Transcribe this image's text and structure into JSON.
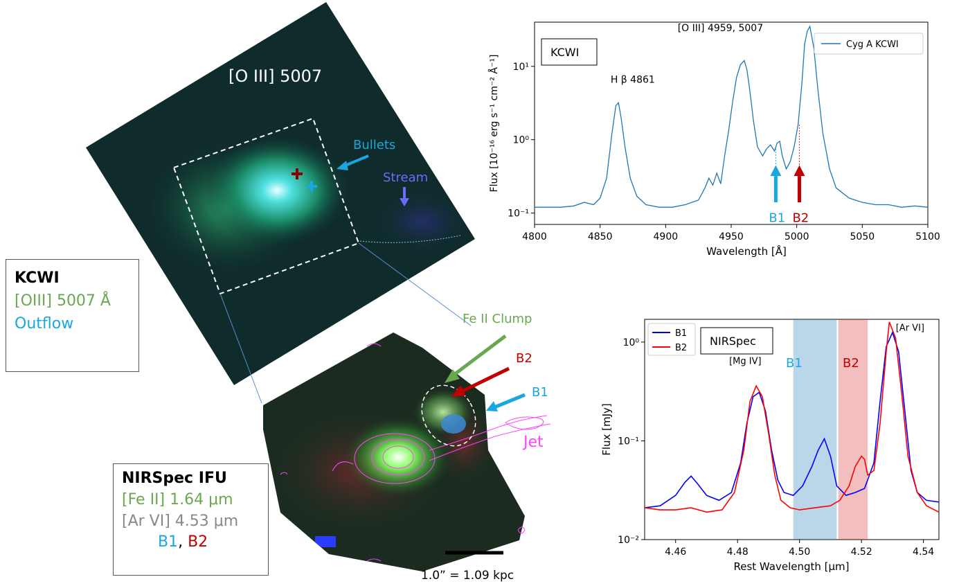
{
  "kcwi_image": {
    "title": "[O III] 5007",
    "bullets_label": "Bullets",
    "stream_label": "Stream"
  },
  "kcwi_box": {
    "line1": "KCWI",
    "line2": "[OIII] 5007 Å",
    "line3": "Outflow"
  },
  "nirspec_image": {
    "fe_clump_label": "Fe II Clump",
    "b2_label": "B2",
    "b1_label": "B1",
    "jet_label": "Jet",
    "scale_label": "1.0” = 1.09 kpc"
  },
  "nirspec_box": {
    "line1": "NIRSpec IFU",
    "line2": "[Fe II] 1.64 μm",
    "line3": "[Ar VI] 4.53 μm",
    "line4a": "B1",
    "line4b": ", ",
    "line4c": "B2"
  },
  "colors": {
    "green": "#6aa84f",
    "cyan": "#1aa7e0",
    "red": "#c00000",
    "gray": "#888888",
    "magenta": "#ff44ff",
    "stream": "#6b6bff"
  },
  "chart_data": [
    {
      "type": "line",
      "inset_label": "KCWI",
      "xlabel": "Wavelength [Å]",
      "ylabel": "Flux [10⁻¹⁶ erg s⁻¹ cm⁻² Å⁻¹]",
      "xlim": [
        4800,
        5100
      ],
      "ylim": [
        0.07,
        40
      ],
      "yscale": "log",
      "xticks": [
        4800,
        4850,
        4900,
        4950,
        5000,
        5050,
        5100
      ],
      "yticks": [
        {
          "v": 0.1,
          "label": "10⁻¹"
        },
        {
          "v": 1,
          "label": "10⁰"
        },
        {
          "v": 10,
          "label": "10¹"
        }
      ],
      "legend": "top-right",
      "series": [
        {
          "name": "Cyg A KCWI",
          "color": "#1f77b4",
          "x": [
            4800,
            4810,
            4820,
            4830,
            4838,
            4845,
            4850,
            4855,
            4859,
            4862,
            4864,
            4866,
            4869,
            4873,
            4878,
            4885,
            4895,
            4905,
            4915,
            4925,
            4930,
            4933,
            4936,
            4939,
            4942,
            4945,
            4948,
            4951,
            4954,
            4957,
            4960,
            4962,
            4964,
            4967,
            4970,
            4974,
            4977,
            4980,
            4983,
            4985,
            4987,
            4989,
            4992,
            4995,
            4998,
            5001,
            5004,
            5006,
            5008,
            5010,
            5013,
            5016,
            5020,
            5025,
            5030,
            5040,
            5050,
            5060,
            5070,
            5080,
            5090,
            5100
          ],
          "y": [
            0.12,
            0.12,
            0.12,
            0.125,
            0.14,
            0.13,
            0.16,
            0.3,
            1.2,
            2.9,
            3.2,
            2.0,
            0.8,
            0.3,
            0.17,
            0.13,
            0.12,
            0.12,
            0.13,
            0.15,
            0.22,
            0.3,
            0.24,
            0.35,
            0.25,
            0.6,
            1.3,
            3.2,
            7,
            10.5,
            12,
            9,
            5,
            1.8,
            0.8,
            0.6,
            0.75,
            0.85,
            0.7,
            0.9,
            0.95,
            0.6,
            0.4,
            0.5,
            0.8,
            1.6,
            6,
            20,
            30,
            35,
            18,
            5,
            1.2,
            0.4,
            0.22,
            0.16,
            0.14,
            0.13,
            0.13,
            0.12,
            0.125,
            0.12
          ]
        }
      ],
      "annotations": [
        {
          "text": "H β 4861",
          "x": 4858,
          "y": 6
        },
        {
          "text": "[O III] 4959, 5007",
          "x": 4962,
          "y": 30
        },
        {
          "text": "B1",
          "x": 4984,
          "y": 0.09
        },
        {
          "text": "B2",
          "x": 5002,
          "y": 0.09
        }
      ]
    },
    {
      "type": "line",
      "inset_label": "NIRSpec",
      "xlabel": "Rest Wavelength [μm]",
      "ylabel": "Flux [mJy]",
      "xlim": [
        4.45,
        4.545
      ],
      "ylim": [
        0.01,
        1.7
      ],
      "yscale": "log",
      "xticks": [
        4.46,
        4.48,
        4.5,
        4.52,
        4.54
      ],
      "yticks": [
        {
          "v": 0.01,
          "label": "10⁻²"
        },
        {
          "v": 0.1,
          "label": "10⁻¹"
        },
        {
          "v": 1,
          "label": "10⁰"
        }
      ],
      "legend": "top-left",
      "bands": [
        {
          "name": "B1",
          "x0": 4.498,
          "x1": 4.512,
          "color": "#1f77b4"
        },
        {
          "name": "B2",
          "x0": 4.5125,
          "x1": 4.522,
          "color": "#d62728"
        }
      ],
      "series": [
        {
          "name": "B1",
          "color": "#0000ff",
          "x": [
            4.45,
            4.455,
            4.46,
            4.463,
            4.465,
            4.467,
            4.47,
            4.474,
            4.478,
            4.481,
            4.483,
            4.485,
            4.487,
            4.489,
            4.491,
            4.493,
            4.495,
            4.498,
            4.501,
            4.504,
            4.506,
            4.508,
            4.51,
            4.512,
            4.515,
            4.518,
            4.521,
            4.524,
            4.526,
            4.528,
            4.53,
            4.532,
            4.534,
            4.536,
            4.538,
            4.541,
            4.545
          ],
          "y": [
            0.021,
            0.022,
            0.028,
            0.038,
            0.044,
            0.037,
            0.028,
            0.025,
            0.03,
            0.06,
            0.15,
            0.28,
            0.31,
            0.2,
            0.08,
            0.04,
            0.03,
            0.028,
            0.035,
            0.055,
            0.08,
            0.105,
            0.07,
            0.035,
            0.028,
            0.03,
            0.033,
            0.06,
            0.25,
            0.9,
            1.25,
            0.8,
            0.2,
            0.05,
            0.03,
            0.025,
            0.024
          ]
        },
        {
          "name": "B2",
          "color": "#ff0000",
          "x": [
            4.45,
            4.455,
            4.46,
            4.465,
            4.47,
            4.475,
            4.479,
            4.482,
            4.484,
            4.486,
            4.488,
            4.49,
            4.492,
            4.494,
            4.497,
            4.5,
            4.505,
            4.51,
            4.513,
            4.516,
            4.518,
            4.52,
            4.521,
            4.522,
            4.524,
            4.526,
            4.528,
            4.529,
            4.531,
            4.533,
            4.535,
            4.538,
            4.541,
            4.545
          ],
          "y": [
            0.021,
            0.02,
            0.02,
            0.021,
            0.019,
            0.02,
            0.03,
            0.08,
            0.25,
            0.36,
            0.28,
            0.12,
            0.045,
            0.025,
            0.021,
            0.02,
            0.021,
            0.022,
            0.025,
            0.035,
            0.055,
            0.07,
            0.065,
            0.045,
            0.05,
            0.15,
            0.8,
            1.6,
            1.1,
            0.3,
            0.07,
            0.03,
            0.022,
            0.019
          ]
        }
      ],
      "annotations": [
        {
          "text": "[Mg IV]",
          "x": 4.484,
          "y": 0.6
        },
        {
          "text": "[Ar VI]",
          "x": 4.536,
          "y": 1.3
        }
      ]
    }
  ]
}
